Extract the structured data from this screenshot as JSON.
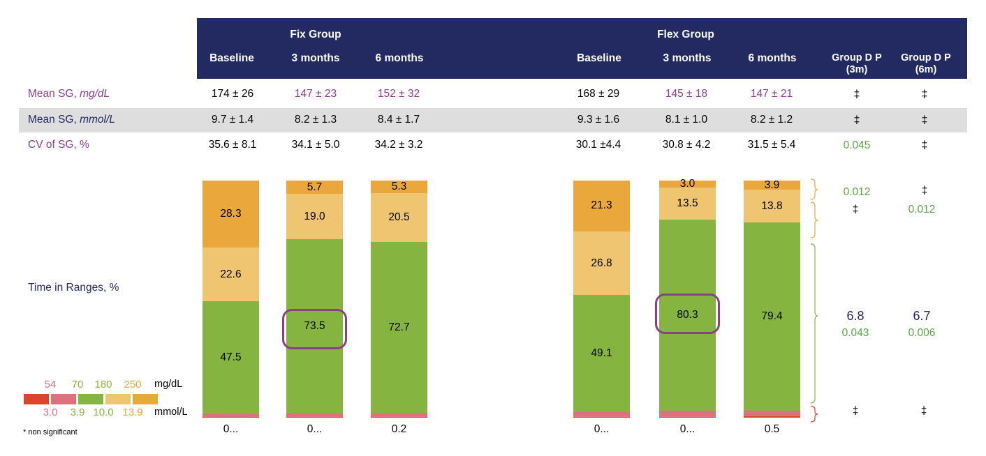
{
  "header": {
    "fix_group": "Fix Group",
    "flex_group": "Flex Group",
    "columns": [
      "Baseline",
      "3 months",
      "6 months",
      "Baseline",
      "3 months",
      "6 months"
    ],
    "group_dp_3m": "Group D P (3m)",
    "group_dp_6m": "Group D P (6m)"
  },
  "table": {
    "rows": [
      {
        "label_main": "Mean SG, ",
        "label_unit": "mg/dL",
        "style": "purple",
        "values": [
          "174 ± 26",
          "147 ± 23",
          "152 ± 32",
          "168 ± 29",
          "145 ± 18",
          "147 ± 21"
        ],
        "dp3": "‡",
        "dp6": "‡"
      },
      {
        "label_main": "Mean SG, ",
        "label_unit": "mmol/L",
        "style": "navy",
        "values": [
          "9.7 ± 1.4",
          "8.2 ± 1.3",
          "8.4 ± 1.7",
          "9.3 ± 1.6",
          "8.1 ± 1.0",
          "8.2 ± 1.2"
        ],
        "dp3": "‡",
        "dp6": "‡"
      },
      {
        "label_main": "CV of SG, %",
        "label_unit": "",
        "style": "purple",
        "values": [
          "35.6 ± 8.1",
          "34.1 ± 5.0",
          "34.2 ± 3.2",
          "30.1 ±4.4",
          "30.8 ± 4.2",
          "31.5 ± 5.4"
        ],
        "dp3": "0.045",
        "dp6": "‡"
      }
    ]
  },
  "chart_data": {
    "type": "bar",
    "stacked": true,
    "ylabel": "Time in Ranges, %",
    "ylim": [
      0,
      100
    ],
    "categories": [
      "Fix Baseline",
      "Fix 3 months",
      "Fix 6 months",
      "Flex Baseline",
      "Flex 3 months",
      "Flex 6 months"
    ],
    "series": [
      {
        "name": "<54 mg/dL (<3.0 mmol/L)",
        "color": "#d9462b",
        "values": [
          0.2,
          0.3,
          0.2,
          0.3,
          0.3,
          0.5
        ],
        "labels": [
          "0...",
          "0...",
          "0.2",
          "0...",
          "0...",
          "0.5"
        ]
      },
      {
        "name": "54-70 mg/dL (3.0-3.9 mmol/L)",
        "color": "#e0707c",
        "values": [
          1.4,
          1.5,
          1.5,
          2.0,
          2.7,
          2.5
        ],
        "labels": [
          "1.4",
          "1.5",
          "1.5",
          "2.0",
          "2.7",
          "2.5"
        ]
      },
      {
        "name": "70-180 mg/dL (3.9-10.0 mmol/L)",
        "color": "#86b440",
        "values": [
          47.5,
          73.5,
          72.7,
          49.1,
          80.3,
          79.4
        ],
        "labels": [
          "47.5",
          "73.5",
          "72.7",
          "49.1",
          "80.3",
          "79.4"
        ]
      },
      {
        "name": "180-250 mg/dL (10.0-13.9 mmol/L)",
        "color": "#efc571",
        "values": [
          22.6,
          19.0,
          20.5,
          26.8,
          13.5,
          13.8
        ],
        "labels": [
          "22.6",
          "19.0",
          "20.5",
          "26.8",
          "13.5",
          "13.8"
        ]
      },
      {
        "name": ">250 mg/dL (>13.9 mmol/L)",
        "color": "#eaa83c",
        "values": [
          28.3,
          5.7,
          5.3,
          21.3,
          3.0,
          3.9
        ],
        "labels": [
          "28.3",
          "5.7",
          "5.3",
          "21.3",
          "3.0",
          "3.9"
        ]
      }
    ],
    "highlighted": [
      "Fix 3 months",
      "Flex 3 months"
    ]
  },
  "stats": {
    "dp3_top": "0.012",
    "dp6_top": "‡",
    "dp3_second": "‡",
    "dp6_second": "0.012",
    "dp3_diff": "6.8",
    "dp3_p": "0.043",
    "dp6_diff": "6.7",
    "dp6_p": "0.006",
    "dp3_bottom": "‡",
    "dp6_bottom": "‡"
  },
  "legend": {
    "mgdl": [
      "54",
      "70",
      "180",
      "250"
    ],
    "mgdl_unit": "mg/dL",
    "mmol": [
      "3.0",
      "3.9",
      "10.0",
      "13.9"
    ],
    "mmol_unit": "mmol/L",
    "swatch_colors": [
      "#d9462b",
      "#e0707c",
      "#86b440",
      "#efc571",
      "#eaa83c"
    ],
    "mgdl_colors": [
      "#e0707c",
      "#86b440",
      "#86b440",
      "#eaa83c"
    ],
    "mmol_colors": [
      "#e0707c",
      "#86b440",
      "#86b440",
      "#eaa83c"
    ]
  },
  "footnote": "* non significant"
}
